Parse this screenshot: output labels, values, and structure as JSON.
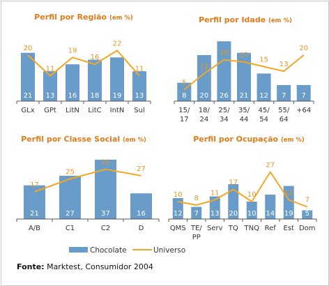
{
  "chart_data": [
    {
      "type": "bar",
      "title": "Perfil por Região",
      "title_unit": "(em %)",
      "categories": [
        [
          "GLx"
        ],
        [
          "GPt"
        ],
        [
          "LitN"
        ],
        [
          "LitC"
        ],
        [
          "IntN"
        ],
        [
          "Sul"
        ]
      ],
      "series": [
        {
          "name": "Chocolate",
          "type": "bar",
          "values": [
            21,
            13,
            16,
            18,
            19,
            13
          ]
        },
        {
          "name": "Universo",
          "type": "line",
          "values": [
            20,
            11,
            19,
            16,
            22,
            11
          ]
        }
      ]
    },
    {
      "type": "bar",
      "title": "Perfil por Idade",
      "title_unit": "(em %)",
      "categories": [
        [
          "15/",
          "17"
        ],
        [
          "18/",
          "24"
        ],
        [
          "25/",
          "34"
        ],
        [
          "35/",
          "44"
        ],
        [
          "45/",
          "54"
        ],
        [
          "55/",
          "64"
        ],
        [
          "+64"
        ]
      ],
      "series": [
        {
          "name": "Chocolate",
          "type": "bar",
          "values": [
            8,
            20,
            26,
            21,
            12,
            7,
            7
          ]
        },
        {
          "name": "Universo",
          "type": "line",
          "values": [
            5,
            12,
            18,
            17,
            15,
            13,
            20
          ]
        }
      ]
    },
    {
      "type": "bar",
      "title": "Perfil por Classe Social",
      "title_unit": "(em %)",
      "categories": [
        [
          "A/B"
        ],
        [
          "C1"
        ],
        [
          "C2"
        ],
        [
          "D"
        ]
      ],
      "series": [
        {
          "name": "Chocolate",
          "type": "bar",
          "values": [
            21,
            27,
            37,
            16
          ]
        },
        {
          "name": "Universo",
          "type": "line",
          "values": [
            17,
            25,
            31,
            27
          ]
        }
      ]
    },
    {
      "type": "bar",
      "title": "Perfil por Ocupação",
      "title_unit": "(em %)",
      "categories": [
        [
          "QMS"
        ],
        [
          "TE/",
          "PP"
        ],
        [
          "Serv"
        ],
        [
          "TQ"
        ],
        [
          "TNQ"
        ],
        [
          "Ref"
        ],
        [
          "Est"
        ],
        [
          "Dom"
        ]
      ],
      "series": [
        {
          "name": "Chocolate",
          "type": "bar",
          "values": [
            12,
            7,
            13,
            20,
            10,
            14,
            19,
            5
          ]
        },
        {
          "name": "Universo",
          "type": "line",
          "values": [
            10,
            8,
            11,
            17,
            10,
            27,
            11,
            7
          ]
        }
      ]
    }
  ],
  "legend": {
    "bar_label": "Chocolate",
    "line_label": "Universo"
  },
  "source": {
    "label": "Fonte:",
    "text": "Marktest, Consumidor 2004"
  },
  "colors": {
    "bar": "#6a9cc9",
    "line": "#f5a623",
    "title": "#e07b1a",
    "axis": "#555555"
  }
}
